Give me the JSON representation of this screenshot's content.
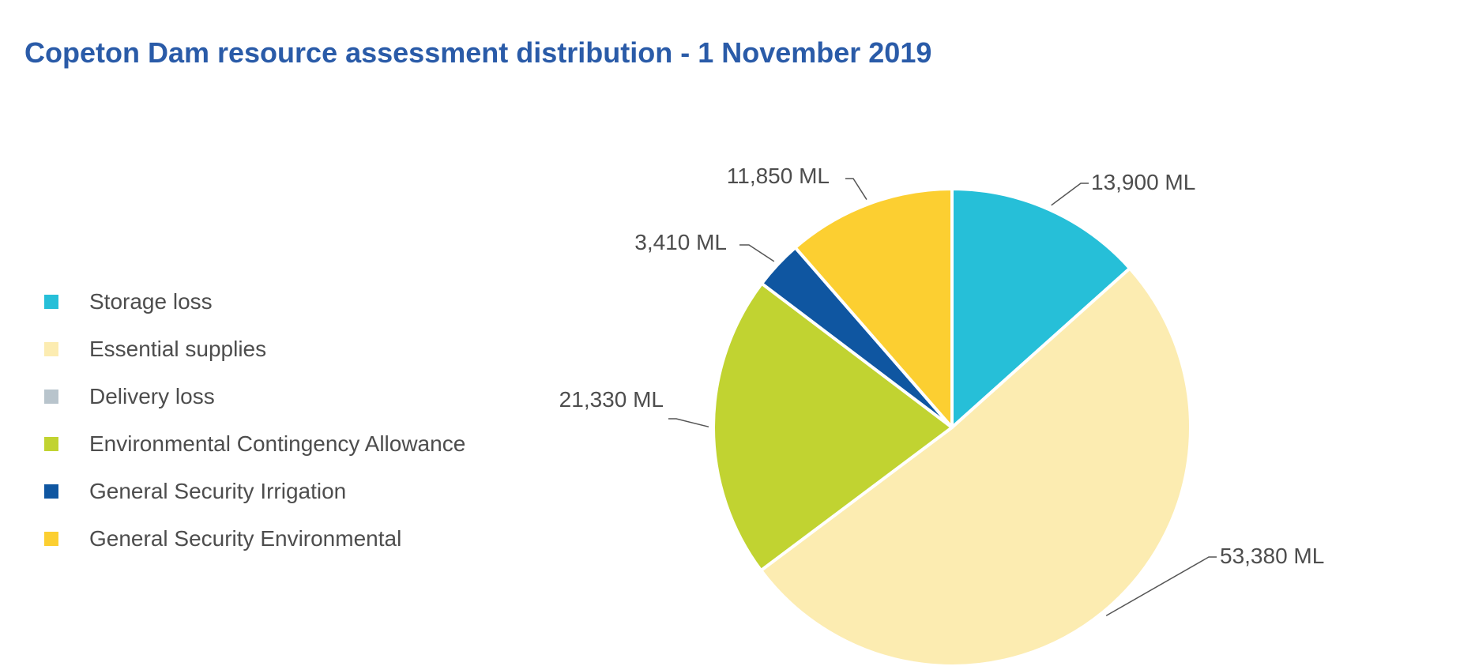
{
  "title": "Copeton Dam resource assessment distribution - 1 November 2019",
  "chart_data": {
    "type": "pie",
    "title": "Copeton Dam resource assessment distribution - 1 November 2019",
    "legend_position": "left",
    "categories": [
      "Storage loss",
      "Essential supplies",
      "Delivery loss",
      "Environmental Contingency Allowance",
      "General Security Irrigation",
      "General Security Environmental"
    ],
    "values": [
      13900,
      53380,
      0,
      21330,
      3410,
      11850
    ],
    "data_labels": [
      "13,900 ML",
      "53,380 ML",
      "",
      "21,330 ML",
      "3,410 ML",
      "11,850 ML"
    ],
    "colors": [
      "#26bfd8",
      "#fcecb1",
      "#b8c4cc",
      "#c1d331",
      "#0f56a1",
      "#fccf31"
    ],
    "unit": "ML"
  }
}
